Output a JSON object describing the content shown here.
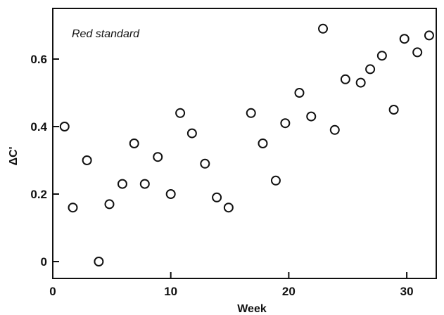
{
  "chart_data": {
    "type": "scatter",
    "title": "",
    "xlabel": "Week",
    "ylabel": "ΔC'",
    "annotation": "Red standard",
    "xlim": [
      0,
      32.5
    ],
    "ylim": [
      -0.05,
      0.75
    ],
    "xticks": [
      0,
      10,
      20,
      30
    ],
    "yticks": [
      0,
      0.2,
      0.4,
      0.6
    ],
    "ytick_labels": [
      "0",
      "0.2",
      "0.4",
      "0.6"
    ],
    "grid": false,
    "legend": "none",
    "points": [
      {
        "x": 1,
        "y": 0.4
      },
      {
        "x": 1.7,
        "y": 0.16
      },
      {
        "x": 2.9,
        "y": 0.3
      },
      {
        "x": 3.9,
        "y": 0.0
      },
      {
        "x": 4.8,
        "y": 0.17
      },
      {
        "x": 5.9,
        "y": 0.23
      },
      {
        "x": 6.9,
        "y": 0.35
      },
      {
        "x": 7.8,
        "y": 0.23
      },
      {
        "x": 8.9,
        "y": 0.31
      },
      {
        "x": 10,
        "y": 0.2
      },
      {
        "x": 10.8,
        "y": 0.44
      },
      {
        "x": 11.8,
        "y": 0.38
      },
      {
        "x": 12.9,
        "y": 0.29
      },
      {
        "x": 13.9,
        "y": 0.19
      },
      {
        "x": 14.9,
        "y": 0.16
      },
      {
        "x": 16.8,
        "y": 0.44
      },
      {
        "x": 17.8,
        "y": 0.35
      },
      {
        "x": 18.9,
        "y": 0.24
      },
      {
        "x": 19.7,
        "y": 0.41
      },
      {
        "x": 20.9,
        "y": 0.5
      },
      {
        "x": 21.9,
        "y": 0.43
      },
      {
        "x": 22.9,
        "y": 0.69
      },
      {
        "x": 23.9,
        "y": 0.39
      },
      {
        "x": 24.8,
        "y": 0.54
      },
      {
        "x": 26.1,
        "y": 0.53
      },
      {
        "x": 26.9,
        "y": 0.57
      },
      {
        "x": 27.9,
        "y": 0.61
      },
      {
        "x": 28.9,
        "y": 0.45
      },
      {
        "x": 29.8,
        "y": 0.66
      },
      {
        "x": 30.9,
        "y": 0.62
      },
      {
        "x": 31.9,
        "y": 0.67
      }
    ]
  }
}
